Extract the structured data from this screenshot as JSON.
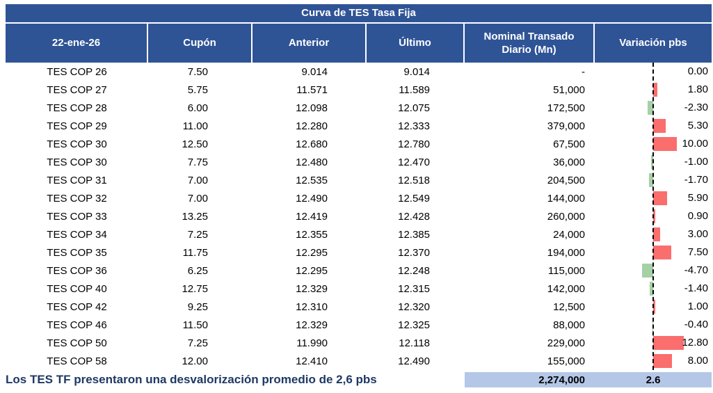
{
  "title": "Curva de TES Tasa Fija",
  "columns": [
    {
      "label": "22-ene-26"
    },
    {
      "label": "Cupón"
    },
    {
      "label": "Anterior"
    },
    {
      "label": "Último"
    },
    {
      "label": "Nominal Transado Diario (Mn)"
    },
    {
      "label": "Variación pbs"
    }
  ],
  "rows": [
    {
      "bond": "TES COP 26",
      "cupon": "7.50",
      "anterior": "9.014",
      "ultimo": "9.014",
      "nominal": "-",
      "variacion_label": "0.00",
      "variacion": 0.0
    },
    {
      "bond": "TES COP 27",
      "cupon": "5.75",
      "anterior": "11.571",
      "ultimo": "11.589",
      "nominal": "51,000",
      "variacion_label": "1.80",
      "variacion": 1.8
    },
    {
      "bond": "TES COP 28",
      "cupon": "6.00",
      "anterior": "12.098",
      "ultimo": "12.075",
      "nominal": "172,500",
      "variacion_label": "-2.30",
      "variacion": -2.3
    },
    {
      "bond": "TES COP 29",
      "cupon": "11.00",
      "anterior": "12.280",
      "ultimo": "12.333",
      "nominal": "379,000",
      "variacion_label": "5.30",
      "variacion": 5.3
    },
    {
      "bond": "TES COP 30",
      "cupon": "12.50",
      "anterior": "12.680",
      "ultimo": "12.780",
      "nominal": "67,500",
      "variacion_label": "10.00",
      "variacion": 10.0
    },
    {
      "bond": "TES COP 30",
      "cupon": "7.75",
      "anterior": "12.480",
      "ultimo": "12.470",
      "nominal": "36,000",
      "variacion_label": "-1.00",
      "variacion": -1.0
    },
    {
      "bond": "TES COP 31",
      "cupon": "7.00",
      "anterior": "12.535",
      "ultimo": "12.518",
      "nominal": "204,500",
      "variacion_label": "-1.70",
      "variacion": -1.7
    },
    {
      "bond": "TES COP 32",
      "cupon": "7.00",
      "anterior": "12.490",
      "ultimo": "12.549",
      "nominal": "144,000",
      "variacion_label": "5.90",
      "variacion": 5.9
    },
    {
      "bond": "TES COP 33",
      "cupon": "13.25",
      "anterior": "12.419",
      "ultimo": "12.428",
      "nominal": "260,000",
      "variacion_label": "0.90",
      "variacion": 0.9
    },
    {
      "bond": "TES COP 34",
      "cupon": "7.25",
      "anterior": "12.355",
      "ultimo": "12.385",
      "nominal": "24,000",
      "variacion_label": "3.00",
      "variacion": 3.0
    },
    {
      "bond": "TES COP 35",
      "cupon": "11.75",
      "anterior": "12.295",
      "ultimo": "12.370",
      "nominal": "194,000",
      "variacion_label": "7.50",
      "variacion": 7.5
    },
    {
      "bond": "TES COP 36",
      "cupon": "6.25",
      "anterior": "12.295",
      "ultimo": "12.248",
      "nominal": "115,000",
      "variacion_label": "-4.70",
      "variacion": -4.7
    },
    {
      "bond": "TES COP 40",
      "cupon": "12.75",
      "anterior": "12.329",
      "ultimo": "12.315",
      "nominal": "142,000",
      "variacion_label": "-1.40",
      "variacion": -1.4
    },
    {
      "bond": "TES COP 42",
      "cupon": "9.25",
      "anterior": "12.310",
      "ultimo": "12.320",
      "nominal": "12,500",
      "variacion_label": "1.00",
      "variacion": 1.0
    },
    {
      "bond": "TES COP 46",
      "cupon": "11.50",
      "anterior": "12.329",
      "ultimo": "12.325",
      "nominal": "88,000",
      "variacion_label": "-0.40",
      "variacion": -0.4
    },
    {
      "bond": "TES COP 50",
      "cupon": "7.25",
      "anterior": "11.990",
      "ultimo": "12.118",
      "nominal": "229,000",
      "variacion_label": "12.80",
      "variacion": 12.8
    },
    {
      "bond": "TES COP 58",
      "cupon": "12.00",
      "anterior": "12.410",
      "ultimo": "12.490",
      "nominal": "155,000",
      "variacion_label": "8.00",
      "variacion": 8.0
    }
  ],
  "summary": {
    "nominal_total": "2,274,000",
    "variacion_avg": "2.6"
  },
  "footer_note": "Los TES TF presentaron una desvalorización promedio de 2,6 pbs",
  "colors": {
    "header_bg": "#2F5496",
    "positive_bar": "#FA6E6E",
    "negative_bar": "#A6D0A6",
    "summary_bg": "#B4C7E7",
    "footer_text": "#1F3864"
  },
  "chart_data": {
    "type": "table",
    "title": "Curva de TES Tasa Fija",
    "date_header": "22-ene-26",
    "columns": [
      "22-ene-26",
      "Cupón",
      "Anterior",
      "Último",
      "Nominal Transado Diario (Mn)",
      "Variación pbs"
    ],
    "rows": [
      [
        "TES COP 26",
        7.5,
        9.014,
        9.014,
        null,
        0.0
      ],
      [
        "TES COP 27",
        5.75,
        11.571,
        11.589,
        51000,
        1.8
      ],
      [
        "TES COP 28",
        6.0,
        12.098,
        12.075,
        172500,
        -2.3
      ],
      [
        "TES COP 29",
        11.0,
        12.28,
        12.333,
        379000,
        5.3
      ],
      [
        "TES COP 30",
        12.5,
        12.68,
        12.78,
        67500,
        10.0
      ],
      [
        "TES COP 30",
        7.75,
        12.48,
        12.47,
        36000,
        -1.0
      ],
      [
        "TES COP 31",
        7.0,
        12.535,
        12.518,
        204500,
        -1.7
      ],
      [
        "TES COP 32",
        7.0,
        12.49,
        12.549,
        144000,
        5.9
      ],
      [
        "TES COP 33",
        13.25,
        12.419,
        12.428,
        260000,
        0.9
      ],
      [
        "TES COP 34",
        7.25,
        12.355,
        12.385,
        24000,
        3.0
      ],
      [
        "TES COP 35",
        11.75,
        12.295,
        12.37,
        194000,
        7.5
      ],
      [
        "TES COP 36",
        6.25,
        12.295,
        12.248,
        115000,
        -4.7
      ],
      [
        "TES COP 40",
        12.75,
        12.329,
        12.315,
        142000,
        -1.4
      ],
      [
        "TES COP 42",
        9.25,
        12.31,
        12.32,
        12500,
        1.0
      ],
      [
        "TES COP 46",
        11.5,
        12.329,
        12.325,
        88000,
        -0.4
      ],
      [
        "TES COP 50",
        7.25,
        11.99,
        12.118,
        229000,
        12.8
      ],
      [
        "TES COP 58",
        12.0,
        12.41,
        12.49,
        155000,
        8.0
      ]
    ],
    "totals": {
      "nominal_transado_diario": 2274000,
      "variacion_promedio_pbs": 2.6
    },
    "embedded_bar_chart": {
      "type": "bar",
      "column": "Variación pbs",
      "orientation": "horizontal",
      "zero_axis_style": "vertical dashed black line",
      "positive_color": "#FA6E6E",
      "negative_color": "#A6D0A6",
      "values": [
        0.0,
        1.8,
        -2.3,
        5.3,
        10.0,
        -1.0,
        -1.7,
        5.9,
        0.9,
        3.0,
        7.5,
        -4.7,
        -1.4,
        1.0,
        -0.4,
        12.8,
        8.0
      ]
    }
  }
}
